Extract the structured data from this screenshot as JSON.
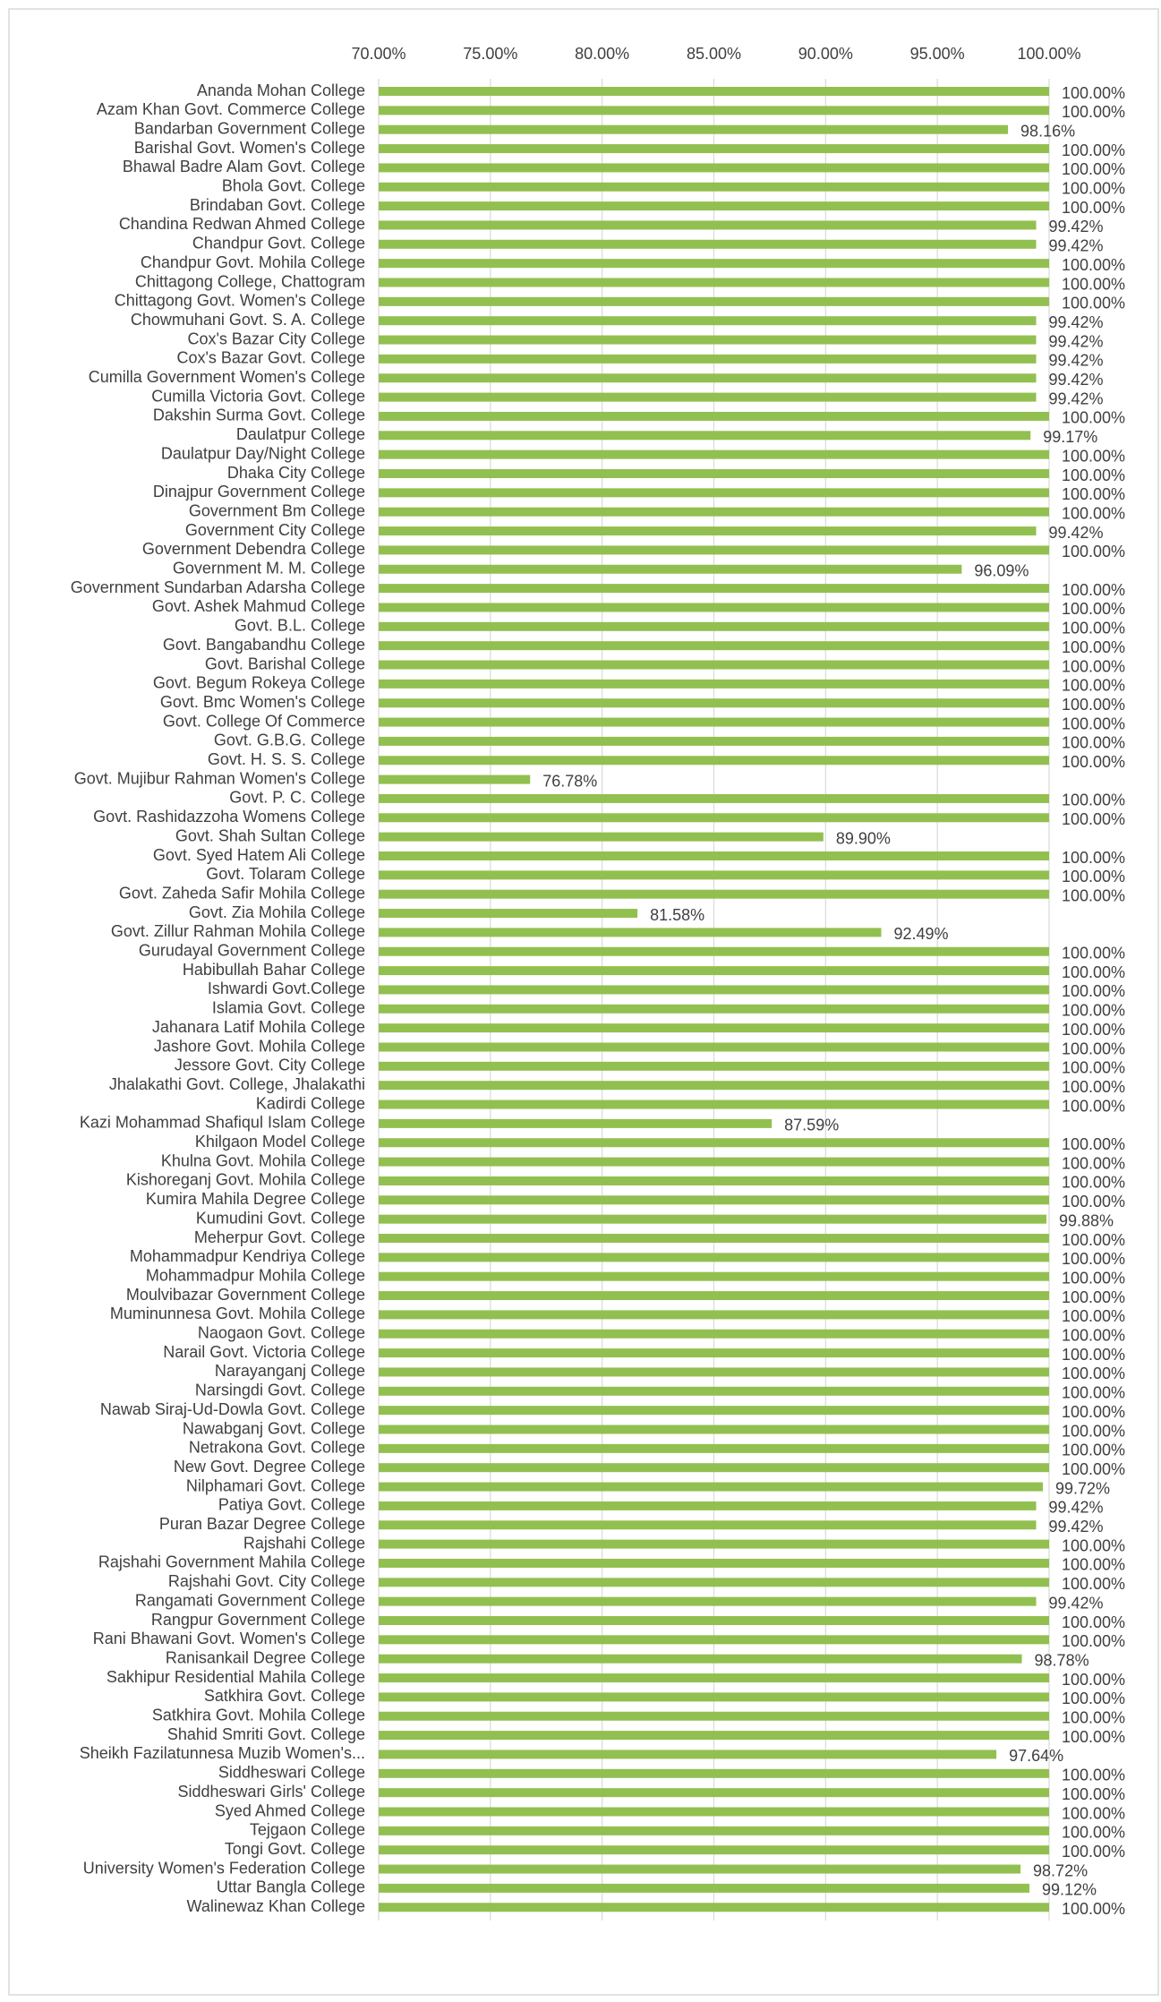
{
  "chart_data": {
    "type": "barh",
    "categories": [
      "Ananda Mohan College",
      "Azam Khan Govt. Commerce College",
      "Bandarban Government College",
      "Barishal Govt. Women's College",
      "Bhawal Badre Alam Govt. College",
      "Bhola Govt. College",
      "Brindaban Govt. College",
      "Chandina Redwan Ahmed College",
      "Chandpur Govt. College",
      "Chandpur Govt. Mohila College",
      "Chittagong College, Chattogram",
      "Chittagong Govt. Women's College",
      "Chowmuhani Govt. S. A. College",
      "Cox's Bazar City College",
      "Cox's Bazar Govt. College",
      "Cumilla Government Women's College",
      "Cumilla Victoria Govt. College",
      "Dakshin Surma Govt. College",
      "Daulatpur College",
      "Daulatpur Day/Night College",
      "Dhaka City College",
      "Dinajpur Government College",
      "Government Bm College",
      "Government City College",
      "Government Debendra College",
      "Government M. M. College",
      "Government Sundarban Adarsha College",
      "Govt. Ashek Mahmud College",
      "Govt. B.L. College",
      "Govt. Bangabandhu College",
      "Govt. Barishal College",
      "Govt. Begum Rokeya College",
      "Govt. Bmc Women's College",
      "Govt. College Of Commerce",
      "Govt. G.B.G. College",
      "Govt. H. S. S. College",
      "Govt. Mujibur Rahman Women's College",
      "Govt. P. C. College",
      "Govt. Rashidazzoha Womens College",
      "Govt. Shah Sultan College",
      "Govt. Syed Hatem Ali College",
      "Govt. Tolaram College",
      "Govt. Zaheda Safir Mohila College",
      "Govt. Zia Mohila College",
      "Govt. Zillur Rahman Mohila College",
      "Gurudayal Government College",
      "Habibullah Bahar College",
      "Ishwardi Govt.College",
      "Islamia Govt. College",
      "Jahanara Latif Mohila College",
      "Jashore Govt. Mohila College",
      "Jessore Govt. City College",
      "Jhalakathi Govt. College, Jhalakathi",
      "Kadirdi College",
      "Kazi Mohammad Shafiqul Islam College",
      "Khilgaon Model College",
      "Khulna Govt. Mohila College",
      "Kishoreganj Govt. Mohila College",
      "Kumira Mahila Degree College",
      "Kumudini Govt. College",
      "Meherpur Govt. College",
      "Mohammadpur Kendriya College",
      "Mohammadpur Mohila College",
      "Moulvibazar Government College",
      "Muminunnesa Govt. Mohila College",
      "Naogaon Govt. College",
      "Narail Govt. Victoria College",
      "Narayanganj College",
      "Narsingdi Govt. College",
      "Nawab Siraj-Ud-Dowla Govt. College",
      "Nawabganj Govt. College",
      "Netrakona Govt. College",
      "New Govt. Degree College",
      "Nilphamari Govt. College",
      "Patiya Govt. College",
      "Puran Bazar Degree College",
      "Rajshahi College",
      "Rajshahi Government Mahila College",
      "Rajshahi Govt. City College",
      "Rangamati Government College",
      "Rangpur Government College",
      "Rani Bhawani Govt. Women's College",
      "Ranisankail Degree College",
      "Sakhipur Residential Mahila College",
      "Satkhira Govt. College",
      "Satkhira Govt. Mohila College",
      "Shahid Smriti Govt. College",
      "Sheikh Fazilatunnesa Muzib Women's...",
      "Siddheswari College",
      "Siddheswari Girls' College",
      "Syed Ahmed College",
      "Tejgaon College",
      "Tongi Govt. College",
      "University Women's Federation College",
      "Uttar Bangla College",
      "Walinewaz Khan College"
    ],
    "values": [
      100,
      100,
      98.16,
      100,
      100,
      100,
      100,
      99.42,
      99.42,
      100,
      100,
      100,
      99.42,
      99.42,
      99.42,
      99.42,
      99.42,
      100,
      99.17,
      100,
      100,
      100,
      100,
      99.42,
      100,
      96.09,
      100,
      100,
      100,
      100,
      100,
      100,
      100,
      100,
      100,
      100,
      76.78,
      100,
      100,
      89.9,
      100,
      100,
      100,
      81.58,
      92.49,
      100,
      100,
      100,
      100,
      100,
      100,
      100,
      100,
      100,
      87.59,
      100,
      100,
      100,
      100,
      99.88,
      100,
      100,
      100,
      100,
      100,
      100,
      100,
      100,
      100,
      100,
      100,
      100,
      100,
      99.72,
      99.42,
      99.42,
      100,
      100,
      100,
      99.42,
      100,
      100,
      98.78,
      100,
      100,
      100,
      100,
      97.64,
      100,
      100,
      100,
      100,
      100,
      98.72,
      99.12,
      100
    ],
    "value_labels": [
      "100.00%",
      "100.00%",
      "98.16%",
      "100.00%",
      "100.00%",
      "100.00%",
      "100.00%",
      "99.42%",
      "99.42%",
      "100.00%",
      "100.00%",
      "100.00%",
      "99.42%",
      "99.42%",
      "99.42%",
      "99.42%",
      "99.42%",
      "100.00%",
      "99.17%",
      "100.00%",
      "100.00%",
      "100.00%",
      "100.00%",
      "99.42%",
      "100.00%",
      "96.09%",
      "100.00%",
      "100.00%",
      "100.00%",
      "100.00%",
      "100.00%",
      "100.00%",
      "100.00%",
      "100.00%",
      "100.00%",
      "100.00%",
      "76.78%",
      "100.00%",
      "100.00%",
      "89.90%",
      "100.00%",
      "100.00%",
      "100.00%",
      "81.58%",
      "92.49%",
      "100.00%",
      "100.00%",
      "100.00%",
      "100.00%",
      "100.00%",
      "100.00%",
      "100.00%",
      "100.00%",
      "100.00%",
      "87.59%",
      "100.00%",
      "100.00%",
      "100.00%",
      "100.00%",
      "99.88%",
      "100.00%",
      "100.00%",
      "100.00%",
      "100.00%",
      "100.00%",
      "100.00%",
      "100.00%",
      "100.00%",
      "100.00%",
      "100.00%",
      "100.00%",
      "100.00%",
      "100.00%",
      "99.72%",
      "99.42%",
      "99.42%",
      "100.00%",
      "100.00%",
      "100.00%",
      "99.42%",
      "100.00%",
      "100.00%",
      "98.78%",
      "100.00%",
      "100.00%",
      "100.00%",
      "100.00%",
      "97.64%",
      "100.00%",
      "100.00%",
      "100.00%",
      "100.00%",
      "100.00%",
      "98.72%",
      "99.12%",
      "100.00%"
    ],
    "color": "#92c050",
    "xlim": [
      70,
      100
    ],
    "xticks": [
      {
        "value": 70,
        "label": "70.00%"
      },
      {
        "value": 75,
        "label": "75.00%"
      },
      {
        "value": 80,
        "label": "80.00%"
      },
      {
        "value": 85,
        "label": "85.00%"
      },
      {
        "value": 90,
        "label": "90.00%"
      },
      {
        "value": 95,
        "label": "95.00%"
      },
      {
        "value": 100,
        "label": "100.00%"
      }
    ],
    "grid": true
  }
}
